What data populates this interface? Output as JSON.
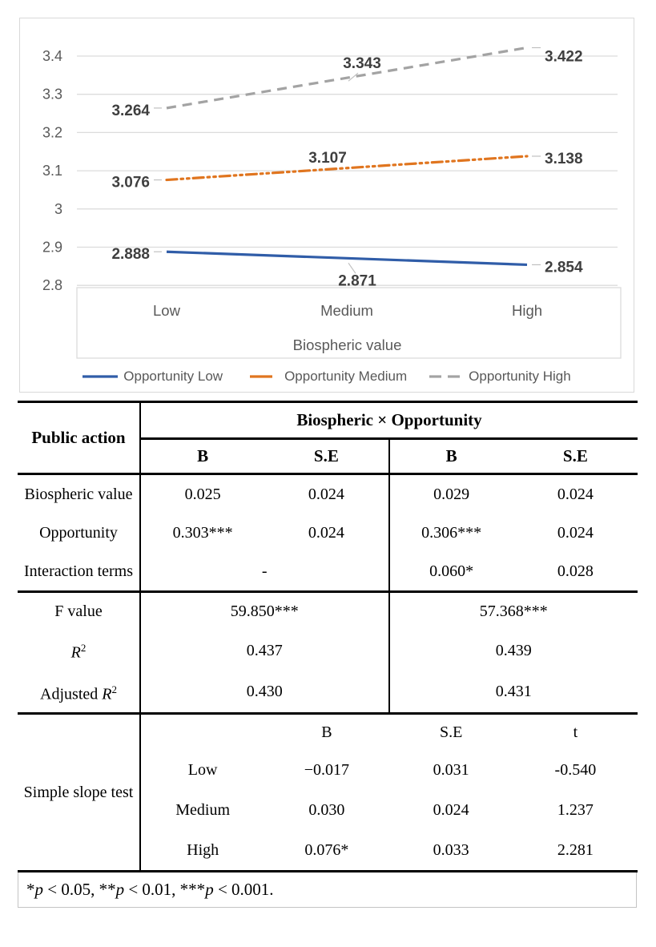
{
  "chart_data": {
    "type": "line",
    "title": "",
    "categories": [
      "Low",
      "Medium",
      "High"
    ],
    "xlabel": "Biospheric value",
    "ylabel": "",
    "ylim": [
      2.8,
      3.45
    ],
    "yticks": [
      "3.4",
      "3.3",
      "3.2",
      "3.1",
      "3",
      "2.9",
      "2.8"
    ],
    "grid": true,
    "legend_position": "bottom",
    "colors": {
      "grid": "#dcdcdc",
      "axis_text": "#595959",
      "data_label": "#3f3f3f",
      "leader": "#c0c0c0"
    },
    "series": [
      {
        "name": "Opportunity Low",
        "color": "#305da8",
        "dash": "solid",
        "values": [
          2.888,
          2.871,
          2.854
        ]
      },
      {
        "name": "Opportunity Medium",
        "color": "#e0751f",
        "dash": "dash-dot-dot",
        "values": [
          3.076,
          3.107,
          3.138
        ]
      },
      {
        "name": "Opportunity High",
        "color": "#a3a3a3",
        "dash": "dash",
        "values": [
          3.264,
          3.343,
          3.422
        ]
      }
    ]
  },
  "table": {
    "corner_header": "Public action",
    "span_header": "Biospheric × Opportunity",
    "sub_headers": [
      "B",
      "S.E",
      "B",
      "S.E"
    ],
    "coef_rows": [
      {
        "label": "Biospheric value",
        "b1": "0.025",
        "se1": "0.024",
        "b2": "0.029",
        "se2": "0.024"
      },
      {
        "label": "Opportunity",
        "b1": "0.303***",
        "se1": "0.024",
        "b2": "0.306***",
        "se2": "0.024"
      },
      {
        "label": "Interaction terms",
        "b1": "-",
        "b2": "0.060*",
        "se2": "0.028"
      }
    ],
    "fit_rows": {
      "f": {
        "label": "F value",
        "m1": "59.850***",
        "m2": "57.368***"
      },
      "r2": {
        "base": "R",
        "sup": "2",
        "m1": "0.437",
        "m2": "0.439"
      },
      "adj_r2": {
        "prefix": "Adjusted ",
        "base": "R",
        "sup": "2",
        "m1": "0.430",
        "m2": "0.431"
      }
    },
    "slope": {
      "label": "Simple slope test",
      "headers": [
        "B",
        "S.E",
        "t"
      ],
      "rows": [
        {
          "name": "Low",
          "b": "−0.017",
          "se": "0.031",
          "t": "-0.540"
        },
        {
          "name": "Medium",
          "b": "0.030",
          "se": "0.024",
          "t": "1.237"
        },
        {
          "name": "High",
          "b": "0.076*",
          "se": "0.033",
          "t": "2.281"
        }
      ]
    }
  },
  "footnote": {
    "segments": [
      "*",
      "p",
      " < 0.05, **",
      "p",
      " < 0.01, ***",
      "p",
      " < 0.001."
    ]
  }
}
